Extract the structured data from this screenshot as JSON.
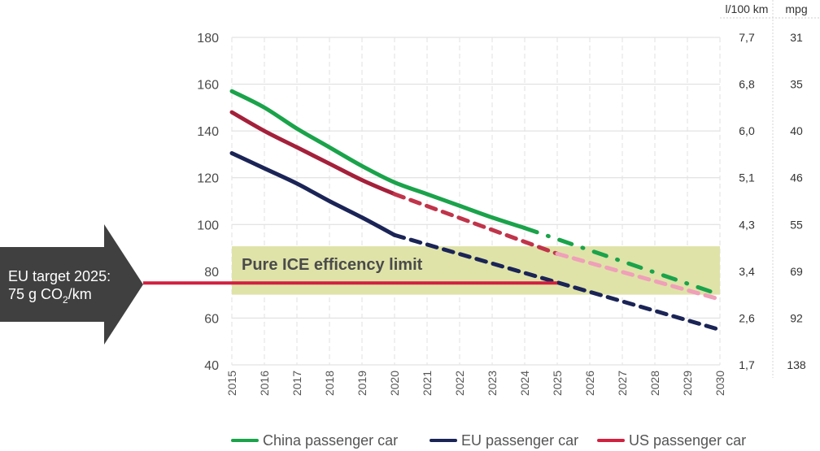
{
  "chart_data": {
    "type": "line",
    "title": "",
    "xlabel": "",
    "ylabel": "",
    "x": [
      2015,
      2016,
      2017,
      2018,
      2019,
      2020,
      2021,
      2022,
      2023,
      2024,
      2025,
      2026,
      2027,
      2028,
      2029,
      2030
    ],
    "x_tick_labels": [
      "2015",
      "2016",
      "2017",
      "2018",
      "2019",
      "2020",
      "2021",
      "2022",
      "2023",
      "2024",
      "2025",
      "2026",
      "2027",
      "2028",
      "2029",
      "2030"
    ],
    "ylim": [
      40,
      180
    ],
    "y_ticks": [
      180,
      160,
      140,
      120,
      100,
      80,
      60,
      40
    ],
    "grid": true,
    "right_axes": [
      {
        "header": "l/100 km",
        "labels": [
          "7,7",
          "6,8",
          "6,0",
          "5,1",
          "4,3",
          "3,4",
          "2,6",
          "1,7"
        ]
      },
      {
        "header": "mpg",
        "labels": [
          "31",
          "35",
          "40",
          "46",
          "55",
          "69",
          "92",
          "138"
        ]
      }
    ],
    "series": [
      {
        "name": "China passenger car",
        "color": "#1aa34a",
        "segments": [
          {
            "style": "solid",
            "x": [
              2015,
              2016,
              2017,
              2018,
              2019,
              2020,
              2021,
              2022,
              2023,
              2024
            ],
            "y": [
              157,
              150,
              141,
              133,
              125,
              118,
              113,
              108,
              103,
              98.5
            ]
          },
          {
            "style": "dash-dot",
            "x": [
              2024,
              2030
            ],
            "y": [
              98.5,
              70
            ]
          }
        ]
      },
      {
        "name": "EU passenger car",
        "color": "#1b2456",
        "segments": [
          {
            "style": "solid",
            "x": [
              2015,
              2016,
              2017,
              2018,
              2019,
              2020
            ],
            "y": [
              130.5,
              124,
              117.5,
              110,
              103,
              95.5
            ]
          },
          {
            "style": "dashed",
            "x": [
              2020,
              2030
            ],
            "y": [
              95.5,
              55
            ]
          }
        ]
      },
      {
        "name": "US passenger car",
        "color": "#d2203f",
        "segments": [
          {
            "style": "solid",
            "color": "#a4203a",
            "x": [
              2015,
              2016,
              2017,
              2018,
              2019,
              2020
            ],
            "y": [
              148,
              140,
              133,
              126,
              119,
              113
            ]
          },
          {
            "style": "dashed",
            "color": "#c0344a",
            "x": [
              2020,
              2025
            ],
            "y": [
              113,
              87.5
            ]
          },
          {
            "style": "dashed",
            "color": "#f0a0b8",
            "x": [
              2025,
              2030
            ],
            "y": [
              87.5,
              68
            ]
          }
        ]
      }
    ],
    "annotations": [
      {
        "type": "band",
        "label": "Pure ICE efficency limit",
        "y_range": [
          70,
          90
        ],
        "x_range": [
          2015,
          2030
        ],
        "color": "#dfe3a8"
      },
      {
        "type": "hline",
        "label": "EU target 2025: 75 g CO2/km",
        "y": 75,
        "x_end": 2025,
        "color": "#d2203f"
      }
    ],
    "legend": {
      "placement": "bottom",
      "entries": [
        "China passenger car",
        "EU passenger car",
        "US passenger car"
      ]
    }
  },
  "arrow": {
    "line1": "EU target 2025:",
    "line2_pre": "75 g CO",
    "line2_sub": "2",
    "line2_post": "/km",
    "color": "#404040"
  },
  "band_label": "Pure ICE efficency limit"
}
